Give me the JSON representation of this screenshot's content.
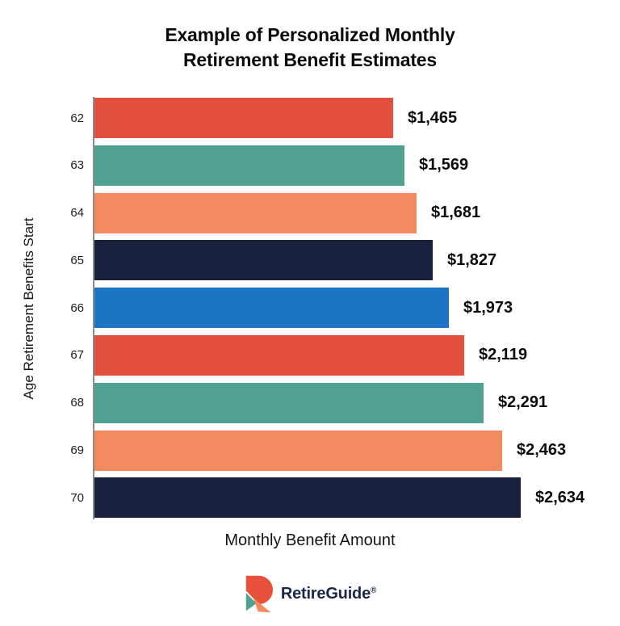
{
  "title": {
    "line1": "Example of Personalized Monthly",
    "line2": "Retirement Benefit Estimates"
  },
  "chart_data": {
    "type": "bar",
    "orientation": "horizontal",
    "title": "Example of Personalized Monthly Retirement Benefit Estimates",
    "xlabel": "Monthly Benefit Amount",
    "ylabel": "Age Retirement Benefits Start",
    "categories": [
      "62",
      "63",
      "64",
      "65",
      "66",
      "67",
      "68",
      "69",
      "70"
    ],
    "values": [
      1465,
      1569,
      1681,
      1827,
      1973,
      2119,
      2291,
      2463,
      2634
    ],
    "value_labels": [
      "$1,465",
      "$1,569",
      "$1,681",
      "$1,827",
      "$1,973",
      "$2,119",
      "$2,291",
      "$2,463",
      "$2,634"
    ],
    "bar_colors": [
      "#e24f3d",
      "#4fa291",
      "#f28a5e",
      "#17203c",
      "#1c74c4",
      "#e24f3d",
      "#4fa291",
      "#f28a5e",
      "#17203c"
    ],
    "palette": {
      "red": "#e24f3d",
      "teal": "#4fa291",
      "orange": "#f28a5e",
      "navy": "#17203c",
      "blue": "#1c74c4"
    },
    "grid": false,
    "legend": "none",
    "value_labels_position": "right-of-bar",
    "axis_line_color": "#8c8c8c"
  },
  "footer": {
    "brand": "RetireGuide",
    "registered": "®",
    "brand_color": "#1e2749",
    "logo_icon_colors": {
      "red": "#e8503c",
      "teal": "#4fa291",
      "salmon": "#f28a5e"
    }
  }
}
